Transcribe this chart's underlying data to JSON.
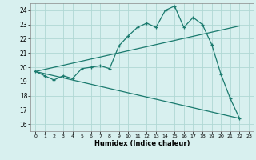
{
  "xlabel": "Humidex (Indice chaleur)",
  "ylabel": "",
  "bg_color": "#d8f0ef",
  "grid_color": "#b0d8d4",
  "line_color": "#1a7a6e",
  "xlim": [
    -0.5,
    23.5
  ],
  "ylim": [
    15.5,
    24.5
  ],
  "yticks": [
    16,
    17,
    18,
    19,
    20,
    21,
    22,
    23,
    24
  ],
  "xticks": [
    0,
    1,
    2,
    3,
    4,
    5,
    6,
    7,
    8,
    9,
    10,
    11,
    12,
    13,
    14,
    15,
    16,
    17,
    18,
    19,
    20,
    21,
    22,
    23
  ],
  "line1_x": [
    0,
    1,
    2,
    3,
    4,
    5,
    6,
    7,
    8,
    9,
    10,
    11,
    12,
    13,
    14,
    15,
    16,
    17,
    18,
    19,
    20,
    21,
    22
  ],
  "line1_y": [
    19.7,
    19.4,
    19.1,
    19.4,
    19.2,
    19.9,
    20.0,
    20.1,
    19.9,
    21.5,
    22.2,
    22.8,
    23.1,
    22.8,
    24.0,
    24.3,
    22.8,
    23.5,
    23.0,
    21.6,
    19.5,
    17.8,
    16.4
  ],
  "line2_x": [
    0,
    22
  ],
  "line2_y": [
    19.7,
    22.9
  ],
  "line3_x": [
    0,
    22
  ],
  "line3_y": [
    19.7,
    16.4
  ]
}
